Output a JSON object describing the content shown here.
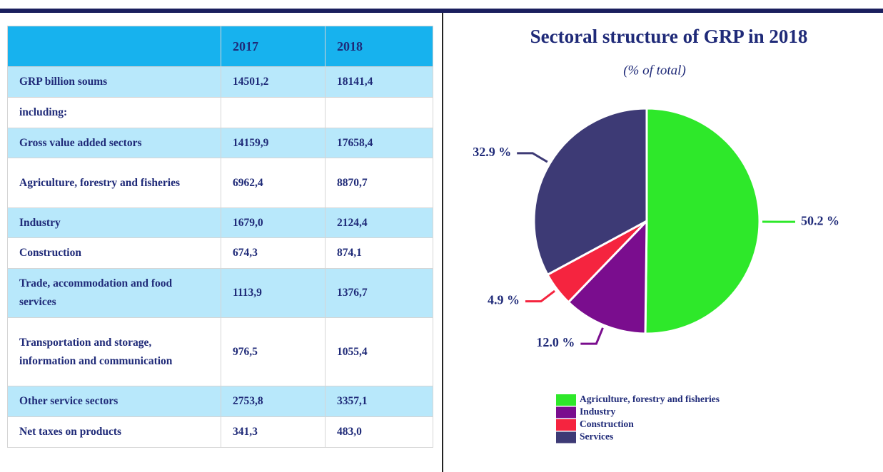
{
  "table": {
    "header": [
      "2017",
      "2018"
    ],
    "rows": [
      {
        "label": "GRP billion soums",
        "values": [
          "14501,2",
          "18141,4"
        ]
      },
      {
        "label": "including:"
      },
      {
        "label": "Gross value added sectors",
        "values": [
          "14159,9",
          "17658,4"
        ]
      },
      {
        "label": "Agriculture, forestry and fisheries",
        "values": [
          "6962,4",
          "8870,7"
        ]
      },
      {
        "label": "Industry",
        "values": [
          "1679,0",
          "2124,4"
        ]
      },
      {
        "label": "Construction",
        "values": [
          "674,3",
          "874,1"
        ]
      },
      {
        "label": "Trade, accommodation and food services",
        "values": [
          "1113,9",
          "1376,7"
        ]
      },
      {
        "label": "Transportation and storage, information and communication",
        "values": [
          "976,5",
          "1055,4"
        ]
      },
      {
        "label": "Other service sectors",
        "values": [
          "2753,8",
          "3357,1"
        ]
      },
      {
        "label": "Net taxes on products",
        "values": [
          "341,3",
          "483,0"
        ]
      }
    ]
  },
  "chart_data": {
    "type": "pie",
    "title": "Sectoral structure of GRP in 2018",
    "subtitle": "(% of total)",
    "categories": [
      "Agriculture, forestry and fisheries",
      "Industry",
      "Construction",
      "Services"
    ],
    "values": [
      50.2,
      12.0,
      4.9,
      32.9
    ],
    "value_labels": [
      "50.2 %",
      "12.0 %",
      "4.9 %",
      "32.9 %"
    ],
    "colors": [
      "#2ee82a",
      "#7a0d8e",
      "#f5243f",
      "#3d3a75"
    ],
    "legend": "bottom"
  }
}
